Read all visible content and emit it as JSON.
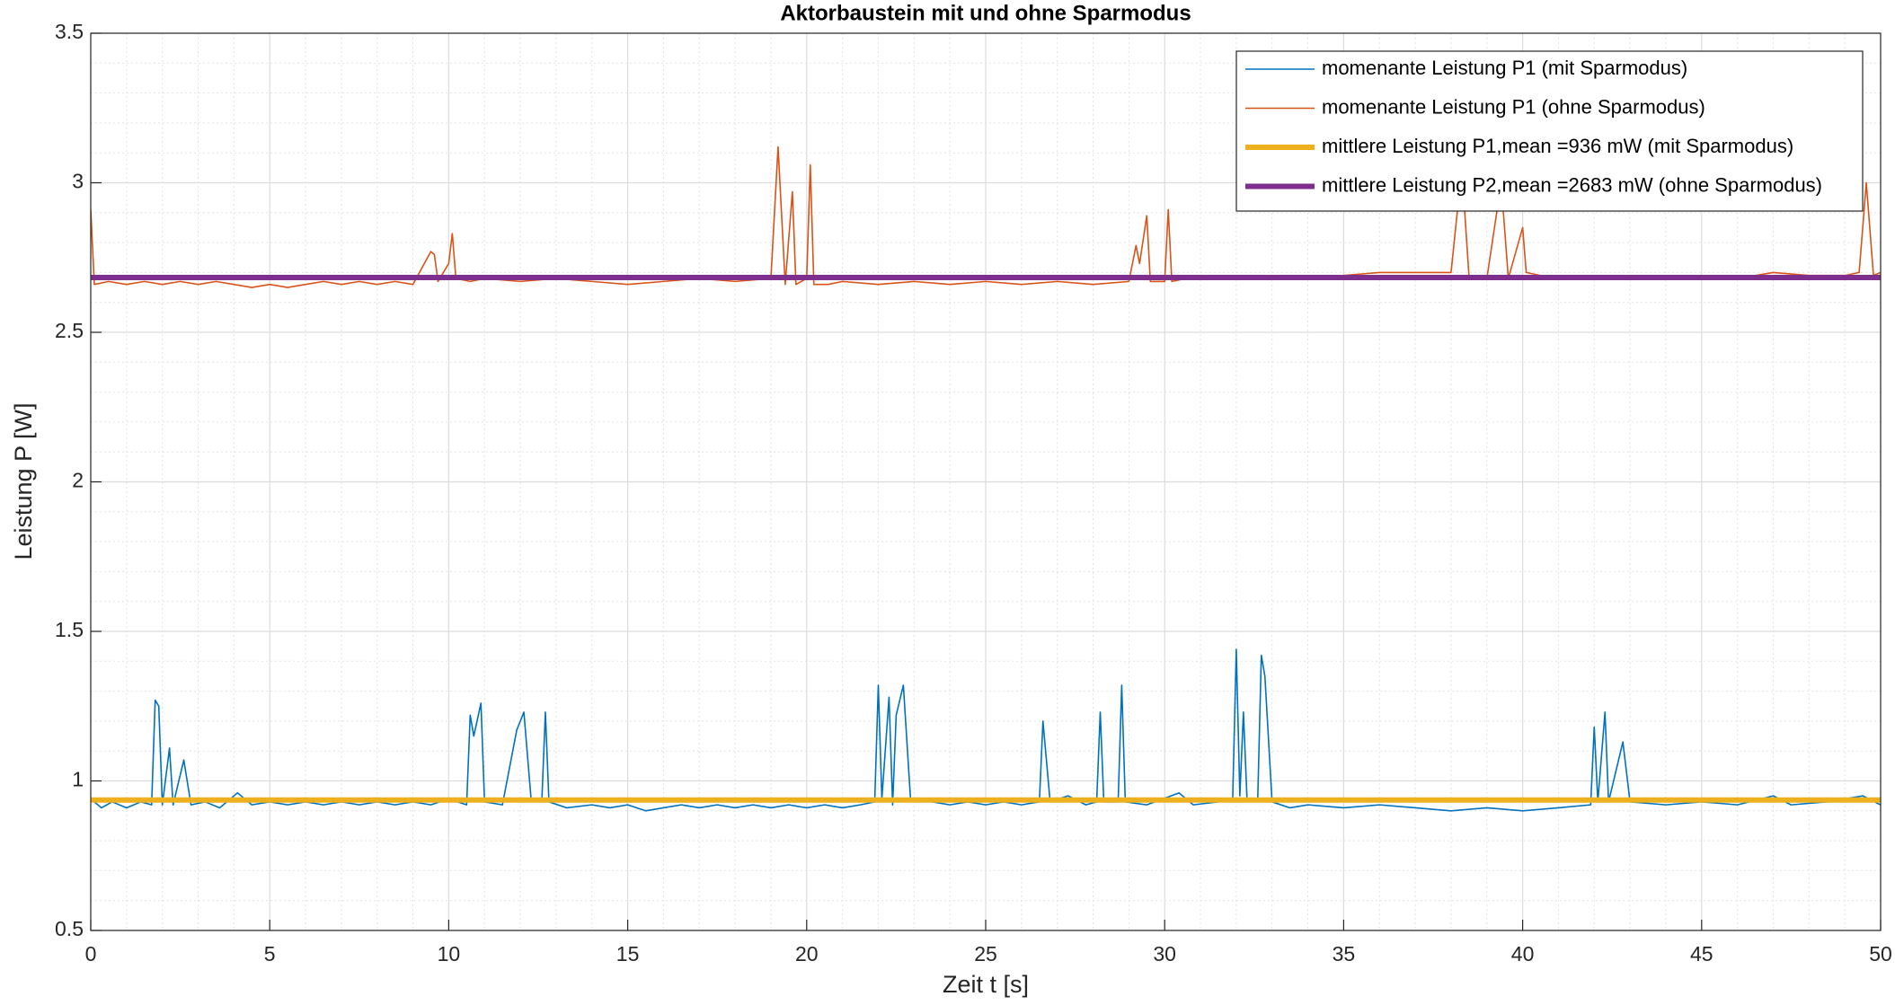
{
  "chart_data": {
    "type": "line",
    "title": "Aktorbaustein mit und ohne Sparmodus",
    "xlabel": "Zeit t [s]",
    "ylabel": "Leistung P [W]",
    "xlim": [
      0,
      50
    ],
    "xticks": [
      0,
      5,
      10,
      15,
      20,
      25,
      30,
      35,
      40,
      45,
      50
    ],
    "ylim": [
      0.5,
      3.5
    ],
    "yticks": [
      0.5,
      1,
      1.5,
      2,
      2.5,
      3,
      3.5
    ],
    "grid": true,
    "minor_grid": true,
    "legend": "upper right",
    "series": [
      {
        "name": "momenante Leistung P1 (mit Sparmodus)",
        "color": "#0072BD",
        "x": [
          0,
          0.3,
          0.6,
          1.0,
          1.4,
          1.7,
          1.8,
          1.9,
          2.0,
          2.2,
          2.3,
          2.6,
          2.8,
          3.2,
          3.6,
          4.1,
          4.5,
          5.0,
          5.5,
          6.0,
          6.5,
          7.0,
          7.5,
          8.0,
          8.5,
          9.0,
          9.5,
          10.0,
          10.5,
          10.6,
          10.7,
          10.9,
          11.0,
          11.5,
          11.9,
          12.1,
          12.3,
          12.6,
          12.7,
          12.8,
          13.3,
          14.0,
          14.5,
          15.0,
          15.5,
          16.0,
          16.5,
          17.0,
          17.5,
          18.0,
          18.5,
          19.0,
          19.5,
          20.0,
          20.5,
          21.0,
          21.5,
          21.9,
          22.0,
          22.1,
          22.3,
          22.4,
          22.5,
          22.7,
          22.9,
          23.5,
          24.0,
          24.5,
          25.0,
          25.5,
          26.0,
          26.5,
          26.6,
          26.8,
          27.3,
          27.8,
          28.1,
          28.2,
          28.3,
          28.7,
          28.8,
          28.9,
          29.5,
          30.4,
          30.8,
          31.5,
          31.9,
          32.0,
          32.1,
          32.2,
          32.3,
          32.6,
          32.7,
          32.8,
          33.0,
          33.5,
          34.0,
          35.0,
          36.0,
          37.0,
          38.0,
          39.0,
          40.0,
          41.0,
          41.9,
          42.0,
          42.1,
          42.3,
          42.4,
          42.8,
          43.0,
          44.0,
          45.0,
          46.0,
          47.0,
          47.5,
          48.5,
          49.5,
          50
        ],
        "values": [
          0.94,
          0.91,
          0.93,
          0.91,
          0.93,
          0.92,
          1.27,
          1.25,
          0.92,
          1.11,
          0.92,
          1.07,
          0.92,
          0.93,
          0.91,
          0.96,
          0.92,
          0.93,
          0.92,
          0.93,
          0.92,
          0.93,
          0.92,
          0.93,
          0.92,
          0.93,
          0.92,
          0.94,
          0.92,
          1.22,
          1.15,
          1.26,
          0.93,
          0.92,
          1.17,
          1.23,
          0.94,
          0.93,
          1.23,
          0.93,
          0.91,
          0.92,
          0.91,
          0.92,
          0.9,
          0.91,
          0.92,
          0.91,
          0.92,
          0.91,
          0.92,
          0.91,
          0.92,
          0.91,
          0.92,
          0.91,
          0.92,
          0.93,
          1.32,
          0.94,
          1.28,
          0.92,
          1.22,
          1.32,
          0.94,
          0.93,
          0.92,
          0.93,
          0.92,
          0.93,
          0.92,
          0.93,
          1.2,
          0.93,
          0.95,
          0.92,
          0.93,
          1.23,
          0.93,
          0.93,
          1.32,
          0.93,
          0.92,
          0.96,
          0.92,
          0.93,
          0.94,
          1.44,
          0.95,
          1.23,
          0.94,
          0.94,
          1.42,
          1.35,
          0.93,
          0.91,
          0.92,
          0.91,
          0.92,
          0.91,
          0.9,
          0.91,
          0.9,
          0.91,
          0.92,
          1.18,
          0.93,
          1.23,
          0.93,
          1.13,
          0.93,
          0.92,
          0.93,
          0.92,
          0.95,
          0.92,
          0.93,
          0.95,
          0.92
        ]
      },
      {
        "name": "momenante Leistung P1 (ohne Sparmodus)",
        "color": "#D95319",
        "x": [
          0,
          0.1,
          0.5,
          1.0,
          1.5,
          2.0,
          2.5,
          3.0,
          3.5,
          4.0,
          4.5,
          5.0,
          5.5,
          6.0,
          6.5,
          7.0,
          7.5,
          8.0,
          8.5,
          9.0,
          9.5,
          9.6,
          9.7,
          10.0,
          10.1,
          10.2,
          10.6,
          11.0,
          12.0,
          13.0,
          14.0,
          15.0,
          16.0,
          17.0,
          18.0,
          19.0,
          19.2,
          19.4,
          19.6,
          19.7,
          20.0,
          20.1,
          20.2,
          20.6,
          21.0,
          22.0,
          23.0,
          24.0,
          25.0,
          26.0,
          27.0,
          28.0,
          29.0,
          29.2,
          29.3,
          29.5,
          29.6,
          30.0,
          30.1,
          30.2,
          30.6,
          31.0,
          32.0,
          33.0,
          34.0,
          35.0,
          36.0,
          37.0,
          38.0,
          38.3,
          38.5,
          39.0,
          39.4,
          39.6,
          40.0,
          40.1,
          40.5,
          41.0,
          42.0,
          43.0,
          44.0,
          45.0,
          46.0,
          47.0,
          48.0,
          49.0,
          49.4,
          49.6,
          49.8,
          50
        ],
        "values": [
          2.91,
          2.66,
          2.67,
          2.66,
          2.67,
          2.66,
          2.67,
          2.66,
          2.67,
          2.66,
          2.65,
          2.66,
          2.65,
          2.66,
          2.67,
          2.66,
          2.67,
          2.66,
          2.67,
          2.66,
          2.77,
          2.76,
          2.67,
          2.73,
          2.83,
          2.68,
          2.67,
          2.68,
          2.67,
          2.68,
          2.67,
          2.66,
          2.67,
          2.68,
          2.67,
          2.68,
          3.12,
          2.66,
          2.97,
          2.66,
          2.68,
          3.06,
          2.66,
          2.66,
          2.67,
          2.66,
          2.67,
          2.66,
          2.67,
          2.66,
          2.67,
          2.66,
          2.67,
          2.79,
          2.73,
          2.89,
          2.67,
          2.67,
          2.91,
          2.67,
          2.68,
          2.69,
          2.68,
          2.69,
          2.68,
          2.69,
          2.7,
          2.7,
          2.7,
          3.05,
          2.69,
          2.68,
          3.0,
          2.68,
          2.85,
          2.7,
          2.69,
          2.68,
          2.68,
          2.69,
          2.68,
          2.69,
          2.68,
          2.7,
          2.69,
          2.69,
          2.7,
          3.0,
          2.69,
          2.7
        ]
      }
    ],
    "mean_lines": [
      {
        "name": "mittlere Leistung P1,mean =936 mW (mit Sparmodus)",
        "color": "#EDB120",
        "value": 0.936
      },
      {
        "name": "mittlere Leistung P2,mean =2683 mW (ohne Sparmodus)",
        "color": "#7E2F8E",
        "value": 2.683
      }
    ]
  }
}
